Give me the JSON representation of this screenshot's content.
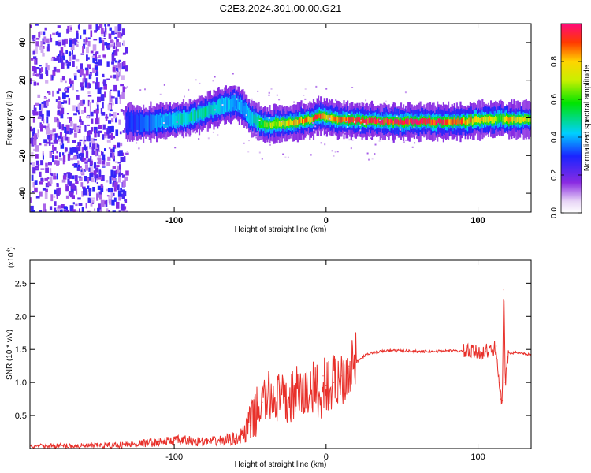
{
  "figure": {
    "title": "C2E3.2024.301.00.00.G21",
    "colorbar": {
      "label": "Normalized spectral amplitude",
      "ticks": [
        "0.0",
        "0.2",
        "0.4",
        "0.6",
        "0.8"
      ],
      "range": [
        0,
        1
      ]
    }
  },
  "chart_data": [
    {
      "type": "heatmap",
      "title": "C2E3.2024.301.00.00.G21",
      "xlabel": "Height of straight line (km)",
      "ylabel": "Frequency (Hz)",
      "xlim": [
        -195,
        135
      ],
      "ylim": [
        -50,
        50
      ],
      "xticks": [
        -100,
        0,
        100
      ],
      "yticks": [
        -40,
        -20,
        0,
        20,
        40
      ],
      "xtick_labels": [
        "-100",
        "0",
        "100"
      ],
      "ytick_labels": [
        "-40",
        "-20",
        "0",
        "20",
        "40"
      ],
      "colorscale": "rainbow (violet to red)",
      "noise_region_x": [
        -195,
        -132
      ],
      "ridge": {
        "x": [
          -132,
          -120,
          -110,
          -100,
          -90,
          -80,
          -70,
          -60,
          -55,
          -50,
          -45,
          -40,
          -30,
          -20,
          -10,
          -5,
          0,
          10,
          30,
          50,
          70,
          90,
          100,
          110,
          114,
          120,
          135
        ],
        "frequency": [
          -2,
          -3,
          -2,
          -1,
          0,
          3,
          6,
          8,
          5,
          0,
          -2,
          -4,
          -3,
          -2,
          -1,
          1,
          0,
          -1,
          -2,
          -2,
          -2,
          -2,
          -1,
          -1,
          0,
          -1,
          -1
        ],
        "amplitude": [
          0.3,
          0.35,
          0.4,
          0.45,
          0.5,
          0.5,
          0.45,
          0.4,
          0.4,
          0.45,
          0.55,
          0.65,
          0.75,
          0.85,
          0.9,
          0.95,
          0.9,
          0.95,
          0.98,
          1.0,
          1.0,
          0.9,
          0.8,
          0.8,
          0.6,
          0.85,
          0.75
        ]
      }
    },
    {
      "type": "line",
      "xlabel": "Height of straight line (km)",
      "ylabel": "SNR (10 * v/v)",
      "y_multiplier": "(x10",
      "y_multiplier_exp": "4",
      "xlim": [
        -195,
        135
      ],
      "ylim": [
        0,
        2.85
      ],
      "xticks": [
        -100,
        0,
        100
      ],
      "yticks": [
        0.5,
        1.0,
        1.5,
        2.0,
        2.5
      ],
      "xtick_labels": [
        "-100",
        "0",
        "100"
      ],
      "ytick_labels": [
        "0.5",
        "1.0",
        "1.5",
        "2.0",
        "2.5"
      ],
      "series": [
        {
          "color": "#e8302a",
          "x": [
            -195,
            -180,
            -160,
            -140,
            -125,
            -110,
            -100,
            -90,
            -80,
            -70,
            -60,
            -55,
            -50,
            -45,
            -42,
            -40,
            -35,
            -30,
            -25,
            -20,
            -15,
            -10,
            -5,
            -3,
            -2,
            0,
            5,
            10,
            15,
            20,
            25,
            30,
            40,
            50,
            60,
            70,
            80,
            90,
            100,
            105,
            110,
            112,
            114,
            115,
            116,
            117,
            118,
            120,
            125,
            130,
            135
          ],
          "y": [
            0.03,
            0.04,
            0.04,
            0.05,
            0.07,
            0.1,
            0.12,
            0.12,
            0.1,
            0.12,
            0.15,
            0.2,
            0.35,
            0.6,
            0.7,
            0.75,
            0.8,
            0.75,
            0.7,
            0.85,
            0.8,
            0.9,
            0.9,
            0.5,
            1.1,
            0.95,
            1.0,
            1.1,
            1.25,
            1.3,
            1.4,
            1.45,
            1.48,
            1.48,
            1.47,
            1.47,
            1.48,
            1.47,
            1.45,
            1.47,
            1.48,
            1.55,
            1.0,
            0.75,
            0.72,
            2.4,
            1.0,
            1.45,
            1.45,
            1.43,
            1.42
          ]
        }
      ]
    }
  ]
}
